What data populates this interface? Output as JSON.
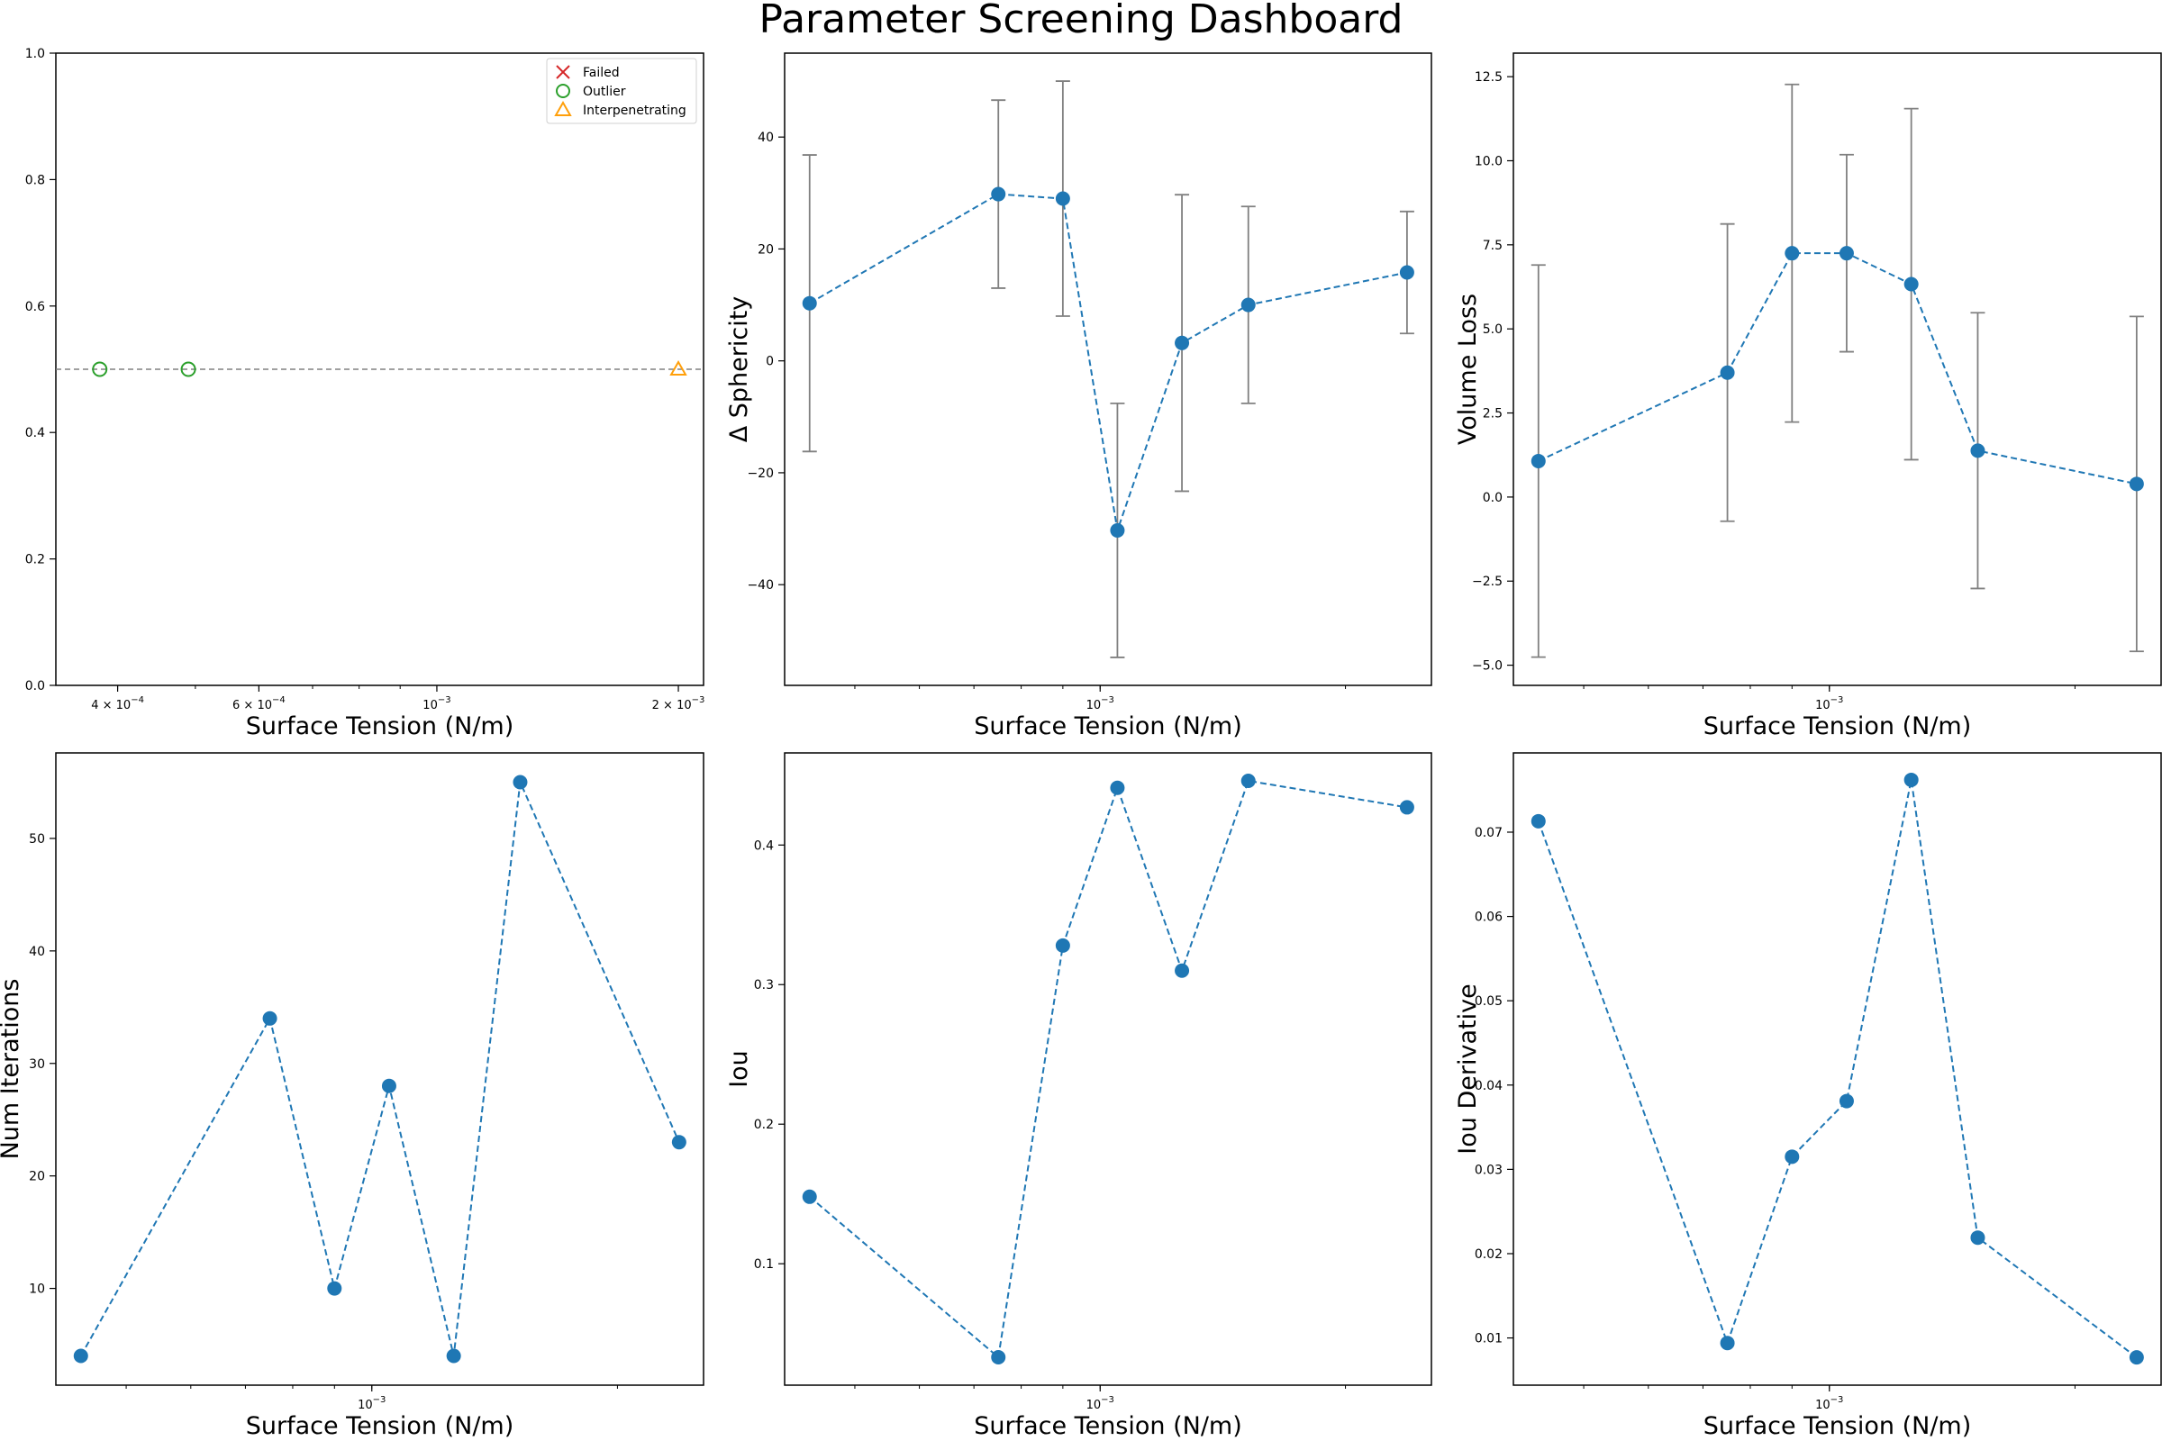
{
  "title": "Parameter Screening Dashboard",
  "colors": {
    "series": "#1f77b4",
    "error_bar": "#808080",
    "failed": "#d62728",
    "outlier": "#2ca02c",
    "interpenetrating": "#ff9f0a"
  },
  "chart_data": [
    {
      "type": "scatter",
      "xlabel": "Surface Tension (N/m)",
      "ylabel": "",
      "xscale": "log",
      "xlim": [
        0.000335,
        0.00215
      ],
      "ylim": [
        0,
        1
      ],
      "yticks": [
        0.0,
        0.2,
        0.4,
        0.6,
        0.8,
        1.0
      ],
      "yticklabels": [
        "0.0",
        "0.2",
        "0.4",
        "0.6",
        "0.8",
        "1.0"
      ],
      "xticks": [
        0.0004,
        0.0006,
        0.001,
        0.002
      ],
      "xticklabels": [
        {
          "base": "4 × 10",
          "exp": "−4"
        },
        {
          "base": "6 × 10",
          "exp": "−4"
        },
        {
          "base": "10",
          "exp": "−3"
        },
        {
          "base": "2 × 10",
          "exp": "−3"
        }
      ],
      "reference_line": 0.5,
      "legend": {
        "position": "top-right",
        "entries": [
          {
            "label": "Failed",
            "marker": "x",
            "color": "#d62728"
          },
          {
            "label": "Outlier",
            "marker": "circle",
            "color": "#2ca02c"
          },
          {
            "label": "Interpenetrating",
            "marker": "triangle",
            "color": "#ff9f0a"
          }
        ]
      },
      "series": [
        {
          "category": "Outlier",
          "marker": "circle",
          "x": [
            0.00038,
            0.00049
          ],
          "y": [
            0.5,
            0.5
          ]
        },
        {
          "category": "Interpenetrating",
          "marker": "triangle",
          "x": [
            0.002
          ],
          "y": [
            0.5
          ]
        }
      ]
    },
    {
      "type": "line",
      "xlabel": "Surface Tension (N/m)",
      "ylabel": "Δ Sphericity",
      "xscale": "log",
      "xlim": [
        0.00041,
        0.00255
      ],
      "ylim": [
        -58,
        55
      ],
      "yticks": [
        -40,
        -20,
        0,
        20,
        40
      ],
      "yticklabels": [
        "−40",
        "−20",
        "0",
        "20",
        "40"
      ],
      "xticks": [
        0.001
      ],
      "xticklabels": [
        {
          "base": "10",
          "exp": "−3"
        }
      ],
      "error_bars": true,
      "x": [
        0.00044,
        0.00075,
        0.0009,
        0.00105,
        0.00126,
        0.00152,
        0.00238
      ],
      "y": [
        10.3,
        29.8,
        29.0,
        -30.3,
        3.2,
        10.0,
        15.8
      ],
      "yerr": [
        26.5,
        16.8,
        21.0,
        22.7,
        26.5,
        17.6,
        10.9
      ]
    },
    {
      "type": "line",
      "xlabel": "Surface Tension (N/m)",
      "ylabel": "Volume Loss",
      "xscale": "log",
      "xlim": [
        0.00041,
        0.00255
      ],
      "ylim": [
        -5.6,
        13.2
      ],
      "yticks": [
        -5.0,
        -2.5,
        0.0,
        2.5,
        5.0,
        7.5,
        10.0,
        12.5
      ],
      "yticklabels": [
        "−5.0",
        "−2.5",
        "0.0",
        "2.5",
        "5.0",
        "7.5",
        "10.0",
        "12.5"
      ],
      "xticks": [
        0.001
      ],
      "xticklabels": [
        {
          "base": "10",
          "exp": "−3"
        }
      ],
      "error_bars": true,
      "x": [
        0.00044,
        0.00075,
        0.0009,
        0.00105,
        0.00126,
        0.00152,
        0.00238
      ],
      "y": [
        1.07,
        3.7,
        7.25,
        7.25,
        6.33,
        1.38,
        0.39
      ],
      "yerr": [
        5.83,
        4.42,
        5.02,
        2.93,
        5.22,
        4.1,
        4.98
      ]
    },
    {
      "type": "line",
      "xlabel": "Surface Tension (N/m)",
      "ylabel": "Num Iterations",
      "xscale": "log",
      "xlim": [
        0.00041,
        0.00255
      ],
      "ylim": [
        1.4,
        57.6
      ],
      "yticks": [
        10,
        20,
        30,
        40,
        50
      ],
      "yticklabels": [
        "10",
        "20",
        "30",
        "40",
        "50"
      ],
      "xticks": [
        0.001
      ],
      "xticklabels": [
        {
          "base": "10",
          "exp": "−3"
        }
      ],
      "x": [
        0.00044,
        0.00075,
        0.0009,
        0.00105,
        0.00126,
        0.00152,
        0.00238
      ],
      "y": [
        4,
        34,
        10,
        28,
        4,
        55,
        23
      ]
    },
    {
      "type": "line",
      "xlabel": "Surface Tension (N/m)",
      "ylabel": "Iou",
      "xscale": "log",
      "xlim": [
        0.00041,
        0.00255
      ],
      "ylim": [
        0.013,
        0.466
      ],
      "yticks": [
        0.1,
        0.2,
        0.3,
        0.4
      ],
      "yticklabels": [
        "0.1",
        "0.2",
        "0.3",
        "0.4"
      ],
      "xticks": [
        0.001
      ],
      "xticklabels": [
        {
          "base": "10",
          "exp": "−3"
        }
      ],
      "x": [
        0.00044,
        0.00075,
        0.0009,
        0.00105,
        0.00126,
        0.00152,
        0.00238
      ],
      "y": [
        0.148,
        0.033,
        0.328,
        0.441,
        0.31,
        0.446,
        0.427
      ]
    },
    {
      "type": "line",
      "xlabel": "Surface Tension (N/m)",
      "ylabel": "Iou Derivative",
      "xscale": "log",
      "xlim": [
        0.00041,
        0.00255
      ],
      "ylim": [
        0.0044,
        0.0794
      ],
      "yticks": [
        0.01,
        0.02,
        0.03,
        0.04,
        0.05,
        0.06,
        0.07
      ],
      "yticklabels": [
        "0.01",
        "0.02",
        "0.03",
        "0.04",
        "0.05",
        "0.06",
        "0.07"
      ],
      "xticks": [
        0.001
      ],
      "xticklabels": [
        {
          "base": "10",
          "exp": "−3"
        }
      ],
      "x": [
        0.00044,
        0.00075,
        0.0009,
        0.00105,
        0.00126,
        0.00152,
        0.00238
      ],
      "y": [
        0.0713,
        0.0094,
        0.0315,
        0.0381,
        0.0762,
        0.0219,
        0.0077
      ]
    }
  ]
}
